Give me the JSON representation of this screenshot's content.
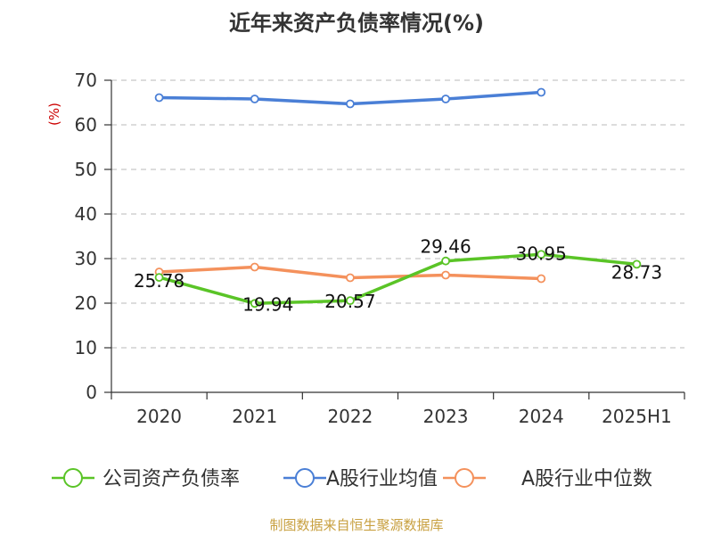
{
  "chart_data": {
    "type": "line",
    "title": "近年来资产负债率情况(%)",
    "ylabel": "(%)",
    "xlabel": "",
    "categories": [
      "2020",
      "2021",
      "2022",
      "2023",
      "2024",
      "2025H1"
    ],
    "ylim": [
      0,
      70
    ],
    "yticks": [
      0,
      10,
      20,
      30,
      40,
      50,
      60,
      70
    ],
    "grid": "horizontal-dashed",
    "legend_position": "bottom",
    "series": [
      {
        "name": "公司资产负债率",
        "color": "#5ac427",
        "values": [
          25.78,
          19.94,
          20.57,
          29.46,
          30.95,
          28.73
        ],
        "labels": [
          "25.78",
          "19.94",
          "20.57",
          "29.46",
          "30.95",
          "28.73"
        ]
      },
      {
        "name": "A股行业均值",
        "color": "#4a7fd6",
        "values": [
          66.1,
          65.8,
          64.7,
          65.8,
          67.3,
          null
        ]
      },
      {
        "name": "A股行业中位数",
        "color": "#f4915c",
        "values": [
          27.0,
          28.1,
          25.7,
          26.3,
          25.5,
          null
        ]
      }
    ]
  },
  "footer": {
    "source": "制图数据来自恒生聚源数据库"
  }
}
